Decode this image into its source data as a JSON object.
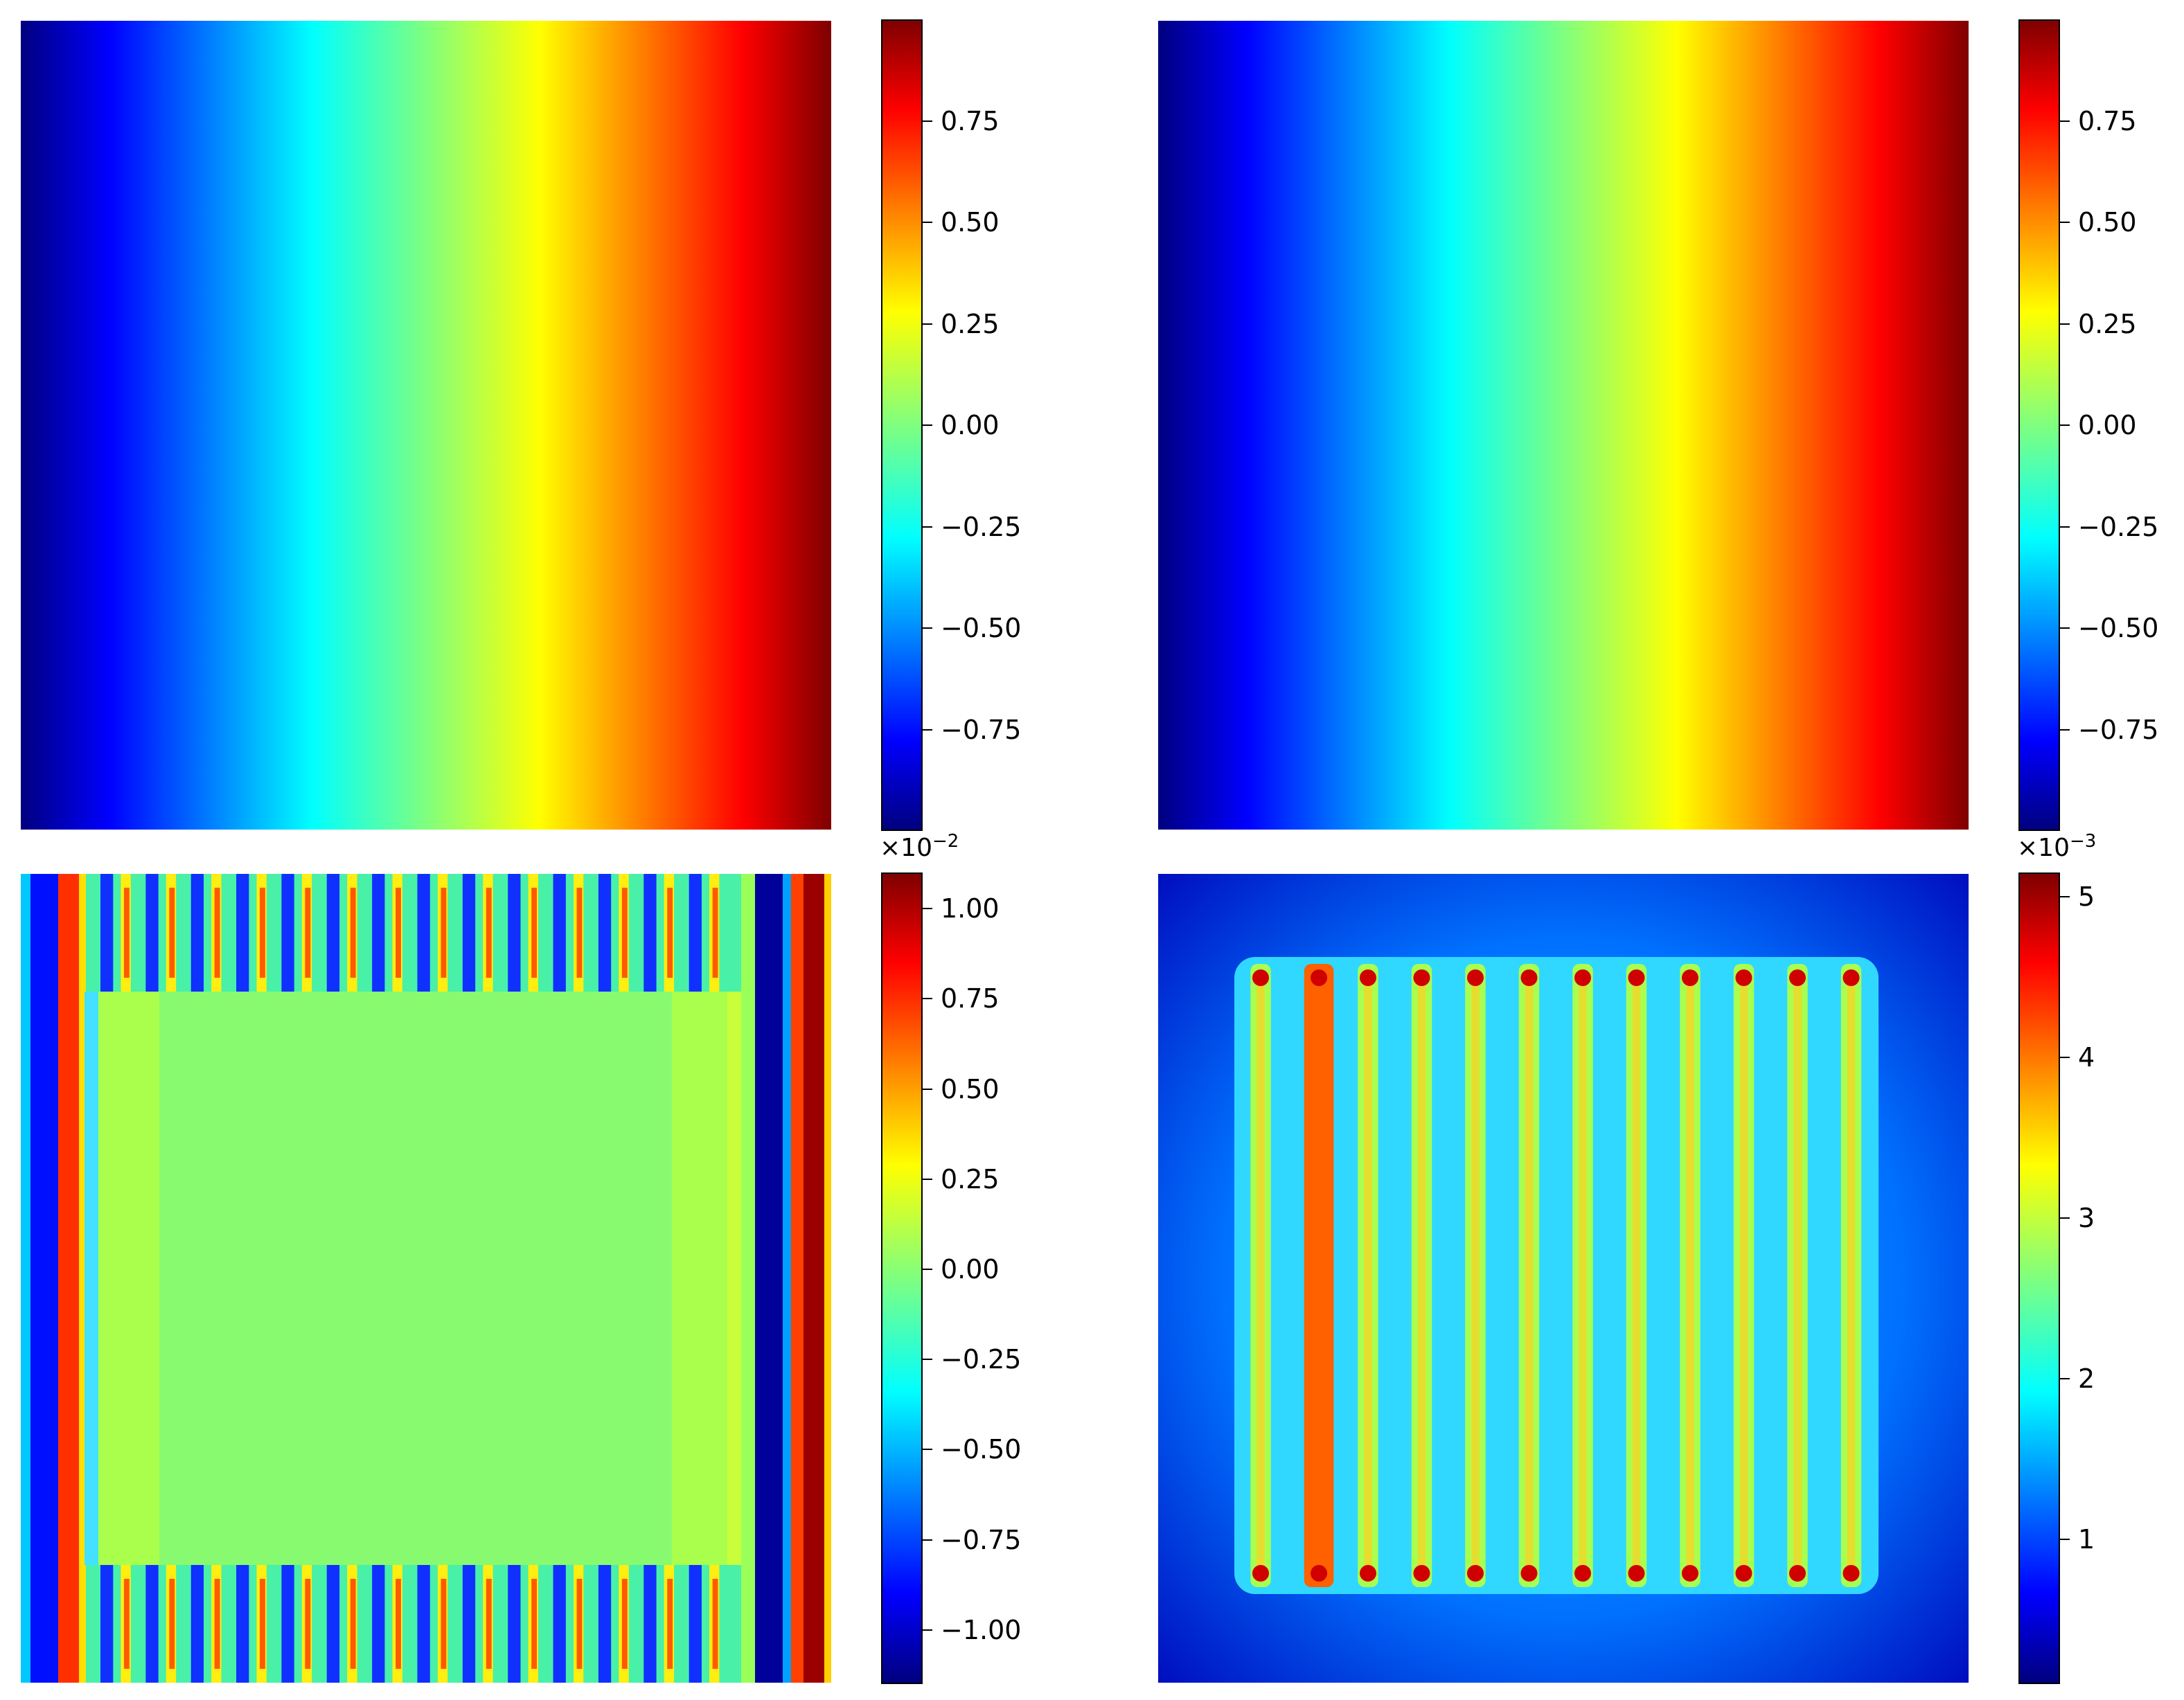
{
  "colormap": "jet",
  "jet_stops": [
    "#00007f",
    "#0000ff",
    "#00ffff",
    "#7fff7f",
    "#ffff00",
    "#ff0000",
    "#7f0000"
  ],
  "chart_data": [
    {
      "type": "heatmap",
      "field": "linear gradient along x",
      "colorbar": {
        "range": [
          -1.0,
          1.0
        ],
        "ticks": [
          -0.75,
          -0.5,
          -0.25,
          0.0,
          0.25,
          0.5,
          0.75
        ],
        "tick_labels": [
          "−0.75",
          "−0.50",
          "−0.25",
          "0.00",
          "0.25",
          "0.50",
          "0.75"
        ],
        "multiplier": ""
      }
    },
    {
      "type": "heatmap",
      "field": "linear gradient along x",
      "colorbar": {
        "range": [
          -1.0,
          1.0
        ],
        "ticks": [
          -0.75,
          -0.5,
          -0.25,
          0.0,
          0.25,
          0.5,
          0.75
        ],
        "tick_labels": [
          "−0.75",
          "−0.50",
          "−0.25",
          "0.00",
          "0.25",
          "0.50",
          "0.75"
        ],
        "multiplier": ""
      }
    },
    {
      "type": "heatmap",
      "field": "difference with periodic stripes",
      "stripes_top_bottom": 14,
      "colorbar": {
        "range": [
          -1.15,
          1.1
        ],
        "ticks": [
          -1.0,
          -0.75,
          -0.5,
          -0.25,
          0.0,
          0.25,
          0.5,
          0.75,
          1.0
        ],
        "tick_labels": [
          "−1.00",
          "−0.75",
          "−0.50",
          "−0.25",
          "0.00",
          "0.25",
          "0.50",
          "0.75",
          "1.00"
        ],
        "multiplier": "×10",
        "multiplier_exp": "−2"
      }
    },
    {
      "type": "heatmap",
      "field": "absolute error with vertical bands",
      "bands": 12,
      "colorbar": {
        "range": [
          0.1,
          5.15
        ],
        "ticks": [
          1,
          2,
          3,
          4,
          5
        ],
        "tick_labels": [
          "1",
          "2",
          "3",
          "4",
          "5"
        ],
        "multiplier": "×10",
        "multiplier_exp": "−3"
      }
    }
  ]
}
